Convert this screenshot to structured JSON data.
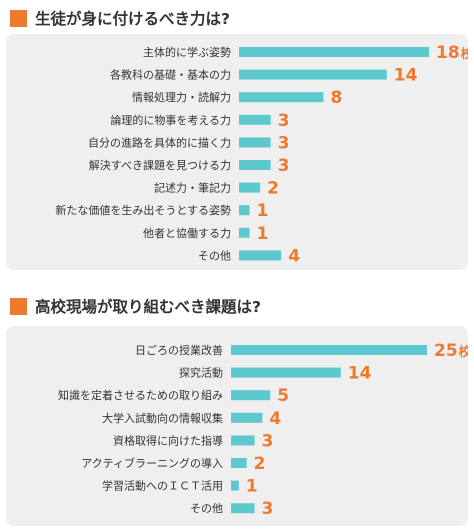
{
  "colors": {
    "accent": "#ee7a2f",
    "bar": "#5ec8cf",
    "panel": "#efefef"
  },
  "chart_data": [
    {
      "type": "bar",
      "orientation": "horizontal",
      "title": "生徒が身に付けるべき力は?",
      "categories": [
        "主体的に学ぶ姿勢",
        "各教科の基礎・基本の力",
        "情報処理力・読解力",
        "論理的に物事を考える力",
        "自分の進路を具体的に描く力",
        "解決すべき課題を見つける力",
        "記述力・筆記力",
        "新たな価値を生み出そうとする姿勢",
        "他者と協働する力",
        "その他"
      ],
      "values": [
        18,
        14,
        8,
        3,
        3,
        3,
        2,
        1,
        1,
        4
      ],
      "value_labels": [
        "18",
        "14",
        "8",
        "3",
        "3",
        "3",
        "2",
        "1",
        "1",
        "4"
      ],
      "unit": "校",
      "xlim": [
        0,
        18
      ]
    },
    {
      "type": "bar",
      "orientation": "horizontal",
      "title": "高校現場が取り組むべき課題は?",
      "categories": [
        "日ごろの授業改善",
        "探究活動",
        "知識を定着させるための取り組み",
        "大学入試動向の情報収集",
        "資格取得に向けた指導",
        "アクティブラーニングの導入",
        "学習活動へのＩＣＴ活用",
        "その他"
      ],
      "values": [
        25,
        14,
        5,
        4,
        3,
        2,
        1,
        3
      ],
      "value_labels": [
        "25",
        "14",
        "5",
        "4",
        "3",
        "2",
        "1",
        "3"
      ],
      "unit": "校",
      "xlim": [
        0,
        25
      ]
    }
  ]
}
